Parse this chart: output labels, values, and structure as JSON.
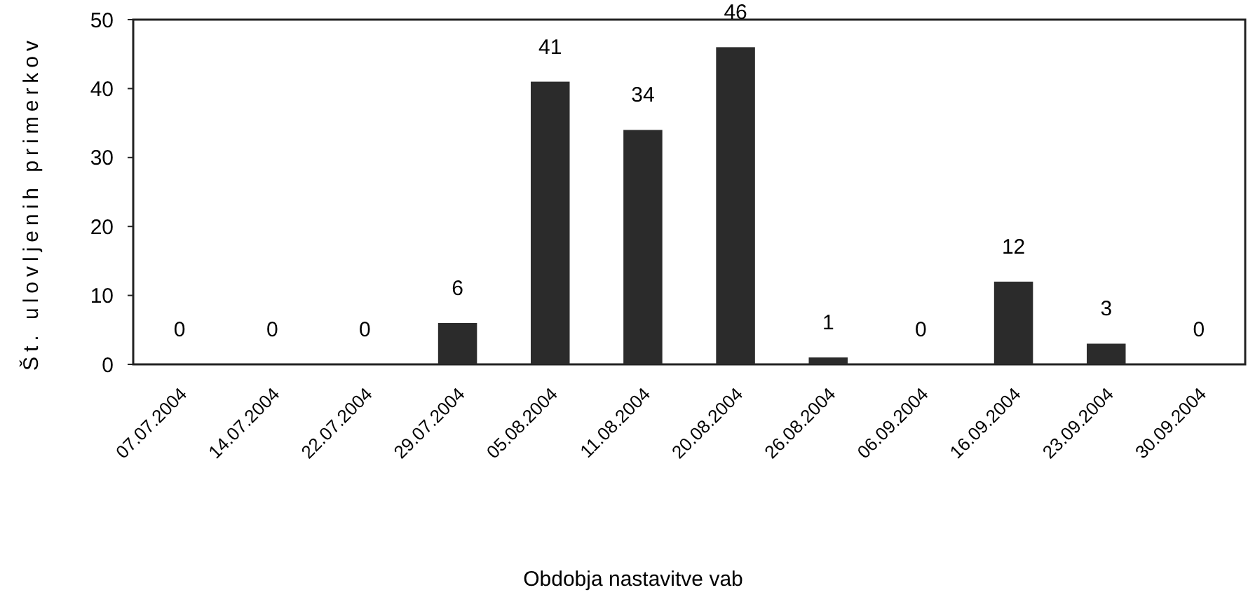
{
  "chart_data": {
    "type": "bar",
    "xlabel": "Obdobja nastavitve vab",
    "ylabel": "Št. ulovljenih primerkov",
    "categories": [
      "07.07.2004",
      "14.07.2004",
      "22.07.2004",
      "29.07.2004",
      "05.08.2004",
      "11.08.2004",
      "20.08.2004",
      "26.08.2004",
      "06.09.2004",
      "16.09.2004",
      "23.09.2004",
      "30.09.2004"
    ],
    "values": [
      0,
      0,
      0,
      6,
      41,
      34,
      46,
      1,
      0,
      12,
      3,
      0
    ],
    "color": "#2b2b2b",
    "ylim": [
      0,
      50
    ],
    "yticks": [
      0,
      10,
      20,
      30,
      40,
      50
    ],
    "data_labels": true
  }
}
